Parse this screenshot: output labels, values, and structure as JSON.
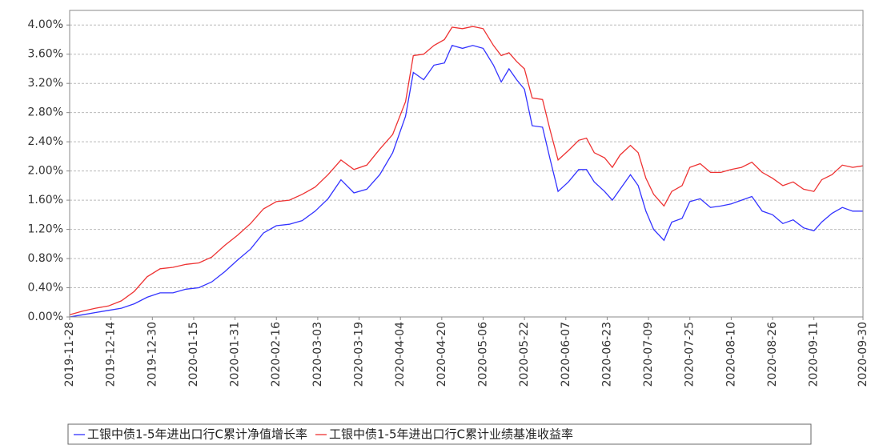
{
  "chart_data": {
    "type": "line",
    "x": [
      "2019-11-28",
      "2019-12-03",
      "2019-12-08",
      "2019-12-13",
      "2019-12-18",
      "2019-12-23",
      "2019-12-28",
      "2020-01-02",
      "2020-01-07",
      "2020-01-12",
      "2020-01-17",
      "2020-01-22",
      "2020-01-27",
      "2020-02-01",
      "2020-02-06",
      "2020-02-11",
      "2020-02-16",
      "2020-02-21",
      "2020-02-26",
      "2020-03-02",
      "2020-03-07",
      "2020-03-12",
      "2020-03-17",
      "2020-03-22",
      "2020-03-27",
      "2020-04-01",
      "2020-04-06",
      "2020-04-09",
      "2020-04-13",
      "2020-04-17",
      "2020-04-21",
      "2020-04-24",
      "2020-04-28",
      "2020-05-02",
      "2020-05-06",
      "2020-05-10",
      "2020-05-13",
      "2020-05-16",
      "2020-05-19",
      "2020-05-22",
      "2020-05-25",
      "2020-05-29",
      "2020-06-01",
      "2020-06-04",
      "2020-06-08",
      "2020-06-12",
      "2020-06-15",
      "2020-06-18",
      "2020-06-22",
      "2020-06-25",
      "2020-06-28",
      "2020-07-02",
      "2020-07-05",
      "2020-07-08",
      "2020-07-11",
      "2020-07-15",
      "2020-07-18",
      "2020-07-22",
      "2020-07-25",
      "2020-07-29",
      "2020-08-02",
      "2020-08-06",
      "2020-08-10",
      "2020-08-14",
      "2020-08-18",
      "2020-08-22",
      "2020-08-26",
      "2020-08-30",
      "2020-09-03",
      "2020-09-07",
      "2020-09-11",
      "2020-09-14",
      "2020-09-18",
      "2020-09-22",
      "2020-09-26",
      "2020-09-30"
    ],
    "series": [
      {
        "name": "工银中债1-5年进出口行C累计净值增长率",
        "color": "#3333ff",
        "values": [
          0.0,
          0.03,
          0.06,
          0.09,
          0.12,
          0.18,
          0.27,
          0.33,
          0.33,
          0.38,
          0.4,
          0.48,
          0.62,
          0.78,
          0.93,
          1.15,
          1.25,
          1.27,
          1.32,
          1.45,
          1.62,
          1.88,
          1.7,
          1.75,
          1.95,
          2.25,
          2.75,
          3.35,
          3.25,
          3.45,
          3.48,
          3.72,
          3.68,
          3.72,
          3.68,
          3.45,
          3.22,
          3.4,
          3.25,
          3.12,
          2.62,
          2.6,
          2.15,
          1.72,
          1.85,
          2.02,
          2.02,
          1.85,
          1.72,
          1.6,
          1.75,
          1.95,
          1.8,
          1.45,
          1.2,
          1.05,
          1.3,
          1.35,
          1.58,
          1.62,
          1.5,
          1.52,
          1.55,
          1.6,
          1.65,
          1.45,
          1.4,
          1.28,
          1.33,
          1.22,
          1.18,
          1.3,
          1.42,
          1.5,
          1.45,
          1.45
        ]
      },
      {
        "name": "工银中债1-5年进出口行C累计业绩基准收益率",
        "color": "#ee3333",
        "values": [
          0.03,
          0.08,
          0.12,
          0.15,
          0.22,
          0.35,
          0.55,
          0.66,
          0.68,
          0.72,
          0.74,
          0.82,
          0.98,
          1.12,
          1.28,
          1.48,
          1.58,
          1.6,
          1.68,
          1.78,
          1.95,
          2.15,
          2.02,
          2.08,
          2.3,
          2.5,
          2.95,
          3.58,
          3.6,
          3.72,
          3.8,
          3.97,
          3.95,
          3.98,
          3.95,
          3.72,
          3.58,
          3.62,
          3.5,
          3.4,
          3.0,
          2.98,
          2.55,
          2.15,
          2.28,
          2.42,
          2.45,
          2.25,
          2.18,
          2.05,
          2.22,
          2.35,
          2.25,
          1.9,
          1.68,
          1.52,
          1.72,
          1.8,
          2.05,
          2.1,
          1.98,
          1.98,
          2.02,
          2.05,
          2.12,
          1.98,
          1.9,
          1.8,
          1.85,
          1.75,
          1.72,
          1.88,
          1.95,
          2.08,
          2.05,
          2.07
        ]
      }
    ],
    "xlim": [
      "2019-11-28",
      "2020-09-30"
    ],
    "xticks": [
      "2019-11-28",
      "2019-12-14",
      "2019-12-30",
      "2020-01-15",
      "2020-01-31",
      "2020-02-16",
      "2020-03-03",
      "2020-03-19",
      "2020-04-04",
      "2020-04-20",
      "2020-05-06",
      "2020-05-22",
      "2020-06-07",
      "2020-06-23",
      "2020-07-09",
      "2020-07-25",
      "2020-08-10",
      "2020-08-26",
      "2020-09-11",
      "2020-09-30"
    ],
    "ylim": [
      0,
      4.2
    ],
    "yticks": [
      {
        "value": 0,
        "label": "0.00%"
      },
      {
        "value": 0.4,
        "label": "0.40%"
      },
      {
        "value": 0.8,
        "label": "0.80%"
      },
      {
        "value": 1.2,
        "label": "1.20%"
      },
      {
        "value": 1.6,
        "label": "1.60%"
      },
      {
        "value": 2.0,
        "label": "2.00%"
      },
      {
        "value": 2.4,
        "label": "2.40%"
      },
      {
        "value": 2.8,
        "label": "2.80%"
      },
      {
        "value": 3.2,
        "label": "3.20%"
      },
      {
        "value": 3.6,
        "label": "3.60%"
      },
      {
        "value": 4.0,
        "label": "4.00%"
      }
    ],
    "grid": true
  }
}
